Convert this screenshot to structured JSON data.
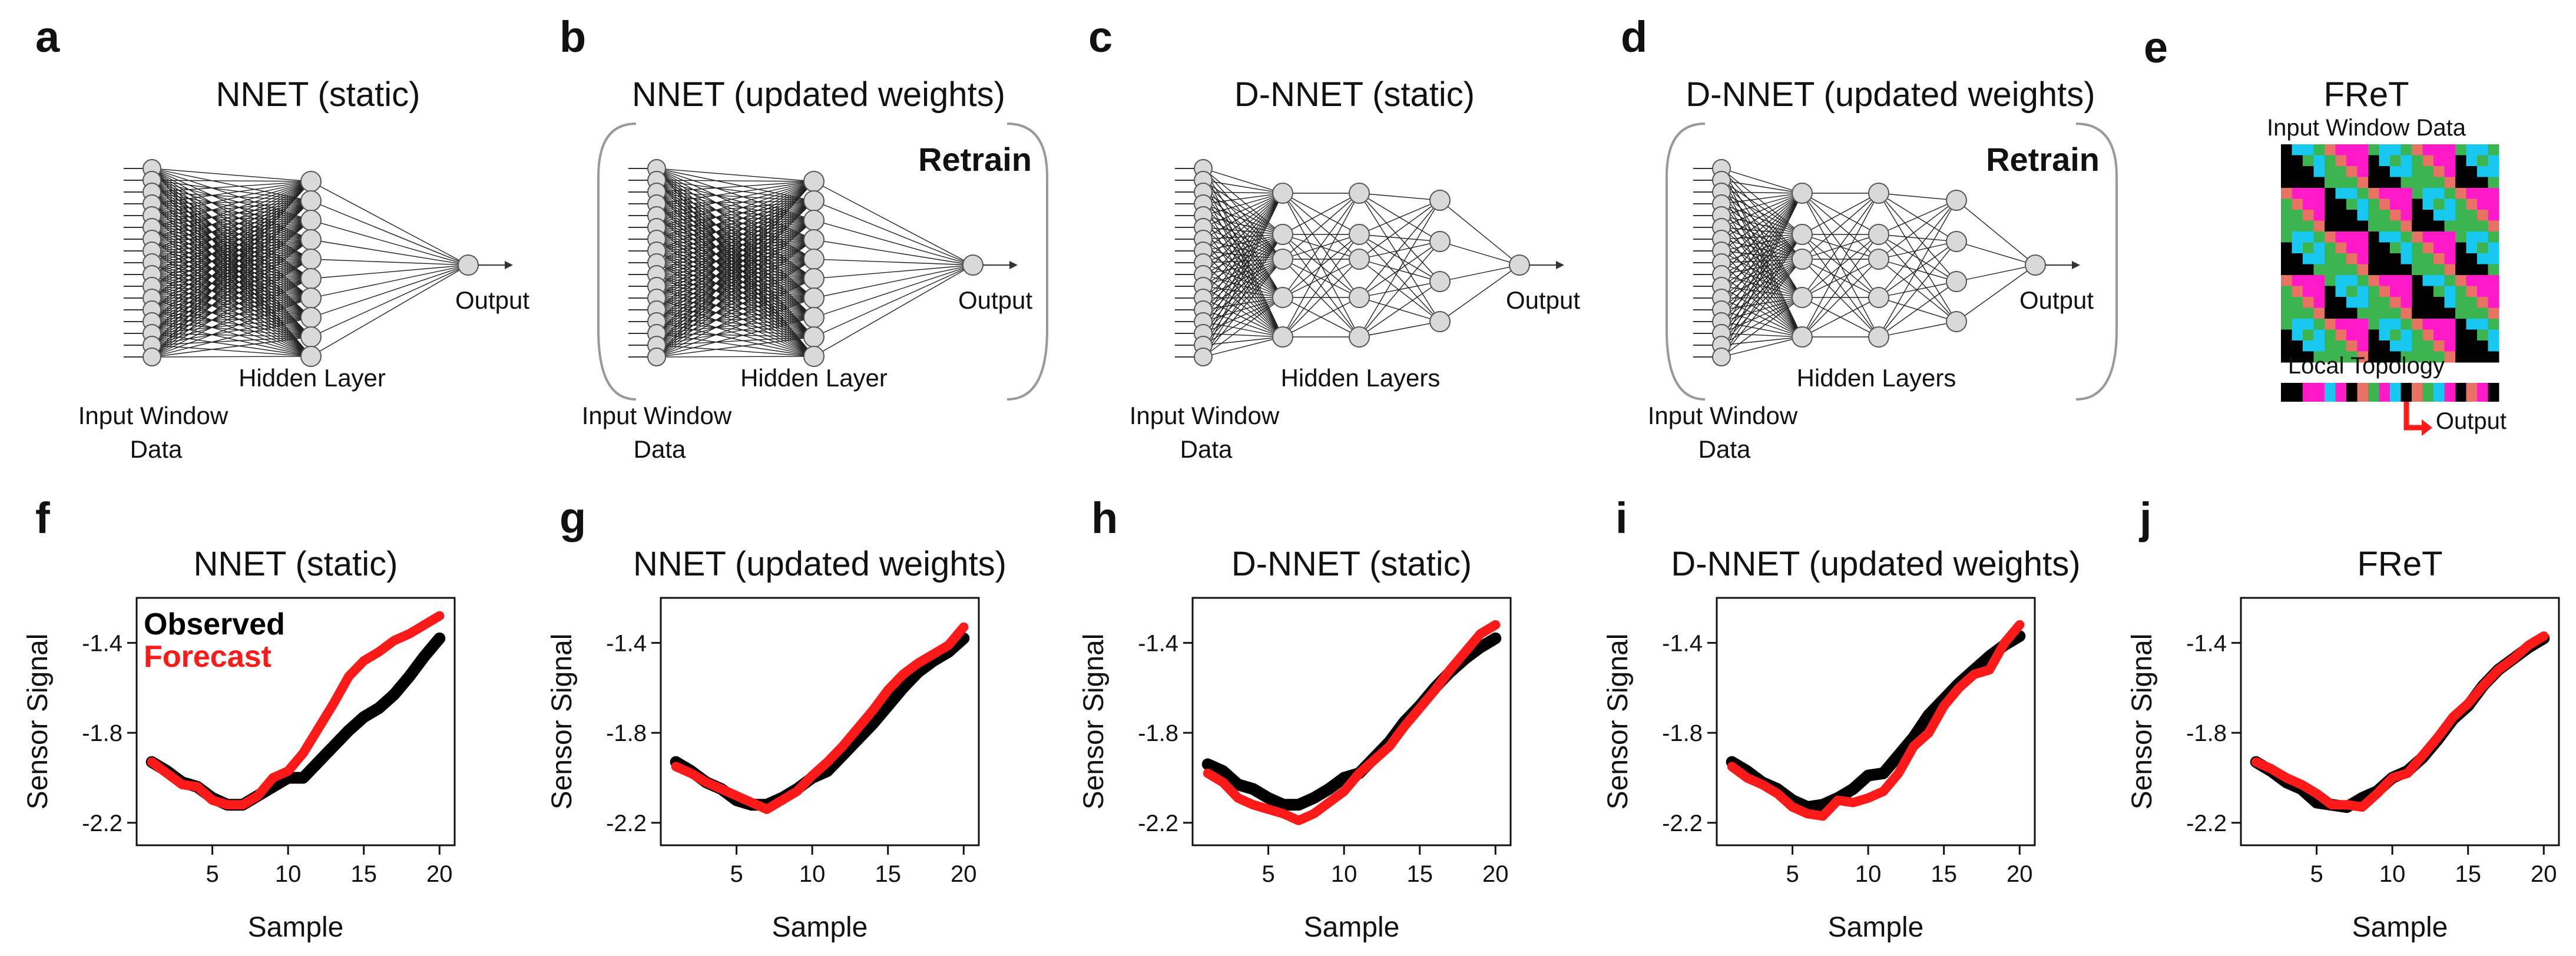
{
  "panels_top": [
    {
      "letter": "a",
      "title": "NNET (static)",
      "label_input_1": "Input Window",
      "label_input_2": "Data",
      "label_hidden": "Hidden Layer",
      "label_output": "Output"
    },
    {
      "letter": "b",
      "title": "NNET (updated weights)",
      "label_input_1": "Input Window",
      "label_input_2": "Data",
      "label_hidden": "Hidden Layer",
      "label_output": "Output",
      "retrain": "Retrain"
    },
    {
      "letter": "c",
      "title": "D-NNET (static)",
      "label_input_1": "Input Window",
      "label_input_2": "Data",
      "label_hidden": "Hidden Layers",
      "label_output": "Output"
    },
    {
      "letter": "d",
      "title": "D-NNET (updated weights)",
      "label_input_1": "Input Window",
      "label_input_2": "Data",
      "label_hidden": "Hidden Layers",
      "label_output": "Output",
      "retrain": "Retrain"
    },
    {
      "letter": "e",
      "title": "FReT",
      "label_input": "Input Window Data",
      "label_topology": "Local Topology",
      "label_output": "Output"
    }
  ],
  "colors": {
    "observed": "#000000",
    "forecast": "#ff1a1a",
    "magenta": "#ff19c8",
    "cyan": "#19c8f0",
    "green": "#3cb450",
    "salmon": "#e87264",
    "black": "#000000",
    "node_fill": "#d9d9d9"
  },
  "chart_data": [
    {
      "letter": "f",
      "type": "line",
      "title": "NNET (static)",
      "xlabel": "Sample",
      "ylabel": "Sensor Signal",
      "xlim": [
        0,
        21
      ],
      "ylim": [
        -2.3,
        -1.2
      ],
      "xticks": [
        "5",
        "10",
        "15",
        "20"
      ],
      "yticks": [
        "-1.4",
        "-1.8",
        "-2.2"
      ],
      "legend": [
        "Observed",
        "Forecast"
      ],
      "x": [
        1,
        2,
        3,
        4,
        5,
        6,
        7,
        8,
        9,
        10,
        11,
        12,
        13,
        14,
        15,
        16,
        17,
        18,
        19,
        20
      ],
      "series": [
        {
          "name": "Observed",
          "values": [
            -1.93,
            -1.97,
            -2.02,
            -2.04,
            -2.09,
            -2.12,
            -2.12,
            -2.08,
            -2.04,
            -2.0,
            -2.0,
            -1.93,
            -1.86,
            -1.79,
            -1.73,
            -1.69,
            -1.63,
            -1.55,
            -1.46,
            -1.38
          ]
        },
        {
          "name": "Forecast",
          "values": [
            -1.93,
            -1.98,
            -2.03,
            -2.04,
            -2.1,
            -2.12,
            -2.12,
            -2.08,
            -2.0,
            -1.97,
            -1.89,
            -1.78,
            -1.67,
            -1.55,
            -1.48,
            -1.44,
            -1.39,
            -1.36,
            -1.32,
            -1.28
          ]
        }
      ]
    },
    {
      "letter": "g",
      "type": "line",
      "title": "NNET (updated weights)",
      "xlabel": "Sample",
      "ylabel": "Sensor Signal",
      "xlim": [
        0,
        21
      ],
      "ylim": [
        -2.3,
        -1.2
      ],
      "xticks": [
        "5",
        "10",
        "15",
        "20"
      ],
      "yticks": [
        "-1.4",
        "-1.8",
        "-2.2"
      ],
      "x": [
        1,
        2,
        3,
        4,
        5,
        6,
        7,
        8,
        9,
        10,
        11,
        12,
        13,
        14,
        15,
        16,
        17,
        18,
        19,
        20
      ],
      "series": [
        {
          "name": "Observed",
          "values": [
            -1.93,
            -1.97,
            -2.02,
            -2.05,
            -2.1,
            -2.12,
            -2.12,
            -2.09,
            -2.05,
            -2.0,
            -1.97,
            -1.9,
            -1.83,
            -1.76,
            -1.68,
            -1.6,
            -1.53,
            -1.48,
            -1.44,
            -1.38
          ]
        },
        {
          "name": "Forecast",
          "values": [
            -1.95,
            -1.98,
            -2.02,
            -2.05,
            -2.08,
            -2.11,
            -2.14,
            -2.1,
            -2.06,
            -1.99,
            -1.93,
            -1.86,
            -1.78,
            -1.7,
            -1.61,
            -1.54,
            -1.49,
            -1.45,
            -1.41,
            -1.33
          ]
        }
      ]
    },
    {
      "letter": "h",
      "type": "line",
      "title": "D-NNET (static)",
      "xlabel": "Sample",
      "ylabel": "Sensor Signal",
      "xlim": [
        0,
        21
      ],
      "ylim": [
        -2.3,
        -1.2
      ],
      "xticks": [
        "5",
        "10",
        "15",
        "20"
      ],
      "yticks": [
        "-1.4",
        "-1.8",
        "-2.2"
      ],
      "x": [
        1,
        2,
        3,
        4,
        5,
        6,
        7,
        8,
        9,
        10,
        11,
        12,
        13,
        14,
        15,
        16,
        17,
        18,
        19,
        20
      ],
      "series": [
        {
          "name": "Observed",
          "values": [
            -1.94,
            -1.97,
            -2.03,
            -2.05,
            -2.09,
            -2.12,
            -2.12,
            -2.09,
            -2.05,
            -2.0,
            -1.98,
            -1.91,
            -1.84,
            -1.75,
            -1.68,
            -1.6,
            -1.53,
            -1.47,
            -1.42,
            -1.38
          ]
        },
        {
          "name": "Forecast",
          "values": [
            -1.98,
            -2.02,
            -2.09,
            -2.12,
            -2.14,
            -2.16,
            -2.19,
            -2.16,
            -2.11,
            -2.06,
            -1.98,
            -1.92,
            -1.86,
            -1.77,
            -1.69,
            -1.61,
            -1.52,
            -1.44,
            -1.36,
            -1.32
          ]
        }
      ]
    },
    {
      "letter": "i",
      "type": "line",
      "title": "D-NNET (updated weights)",
      "xlabel": "Sample",
      "ylabel": "Sensor Signal",
      "xlim": [
        0,
        21
      ],
      "ylim": [
        -2.3,
        -1.2
      ],
      "xticks": [
        "5",
        "10",
        "15",
        "20"
      ],
      "yticks": [
        "-1.4",
        "-1.8",
        "-2.2"
      ],
      "x": [
        1,
        2,
        3,
        4,
        5,
        6,
        7,
        8,
        9,
        10,
        11,
        12,
        13,
        14,
        15,
        16,
        17,
        18,
        19,
        20
      ],
      "series": [
        {
          "name": "Observed",
          "values": [
            -1.93,
            -1.97,
            -2.02,
            -2.05,
            -2.1,
            -2.13,
            -2.12,
            -2.09,
            -2.05,
            -1.99,
            -1.98,
            -1.9,
            -1.82,
            -1.72,
            -1.65,
            -1.58,
            -1.52,
            -1.46,
            -1.41,
            -1.37
          ]
        },
        {
          "name": "Forecast",
          "values": [
            -1.95,
            -2.0,
            -2.03,
            -2.07,
            -2.13,
            -2.16,
            -2.17,
            -2.1,
            -2.11,
            -2.09,
            -2.06,
            -1.98,
            -1.86,
            -1.8,
            -1.68,
            -1.6,
            -1.54,
            -1.52,
            -1.4,
            -1.32
          ]
        }
      ]
    },
    {
      "letter": "j",
      "type": "line",
      "title": "FReT",
      "xlabel": "Sample",
      "ylabel": "Sensor Signal",
      "xlim": [
        0,
        21
      ],
      "ylim": [
        -2.3,
        -1.2
      ],
      "xticks": [
        "5",
        "10",
        "15",
        "20"
      ],
      "yticks": [
        "-1.4",
        "-1.8",
        "-2.2"
      ],
      "x": [
        1,
        2,
        3,
        4,
        5,
        6,
        7,
        8,
        9,
        10,
        11,
        12,
        13,
        14,
        15,
        16,
        17,
        18,
        19,
        20
      ],
      "series": [
        {
          "name": "Observed",
          "values": [
            -1.93,
            -1.97,
            -2.02,
            -2.05,
            -2.11,
            -2.12,
            -2.13,
            -2.09,
            -2.06,
            -2.0,
            -1.97,
            -1.91,
            -1.83,
            -1.74,
            -1.68,
            -1.59,
            -1.52,
            -1.47,
            -1.42,
            -1.38
          ]
        },
        {
          "name": "Forecast",
          "values": [
            -1.93,
            -1.96,
            -2.0,
            -2.03,
            -2.07,
            -2.12,
            -2.12,
            -2.13,
            -2.07,
            -2.0,
            -1.98,
            -1.9,
            -1.82,
            -1.73,
            -1.67,
            -1.59,
            -1.52,
            -1.47,
            -1.41,
            -1.37
          ]
        }
      ]
    }
  ]
}
